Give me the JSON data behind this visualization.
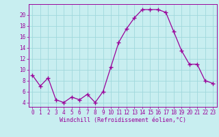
{
  "x": [
    0,
    1,
    2,
    3,
    4,
    5,
    6,
    7,
    8,
    9,
    10,
    11,
    12,
    13,
    14,
    15,
    16,
    17,
    18,
    19,
    20,
    21,
    22,
    23
  ],
  "y": [
    9,
    7,
    8.5,
    4.5,
    4,
    5,
    4.5,
    5.5,
    4,
    6,
    10.5,
    15,
    17.5,
    19.5,
    21,
    21,
    21,
    20.5,
    17,
    13.5,
    11,
    11,
    8,
    7.5
  ],
  "line_color": "#990099",
  "marker": "+",
  "marker_size": 4,
  "bg_color": "#c8eef0",
  "grid_color": "#a0d8dc",
  "xlabel": "Windchill (Refroidissement éolien,°C)",
  "xlabel_color": "#990099",
  "ylabel_ticks": [
    4,
    6,
    8,
    10,
    12,
    14,
    16,
    18,
    20
  ],
  "ylim": [
    3.2,
    22.0
  ],
  "xlim": [
    -0.5,
    23.5
  ],
  "tick_color": "#990099",
  "label_fontsize": 5.5,
  "xlabel_fontsize": 6.0
}
